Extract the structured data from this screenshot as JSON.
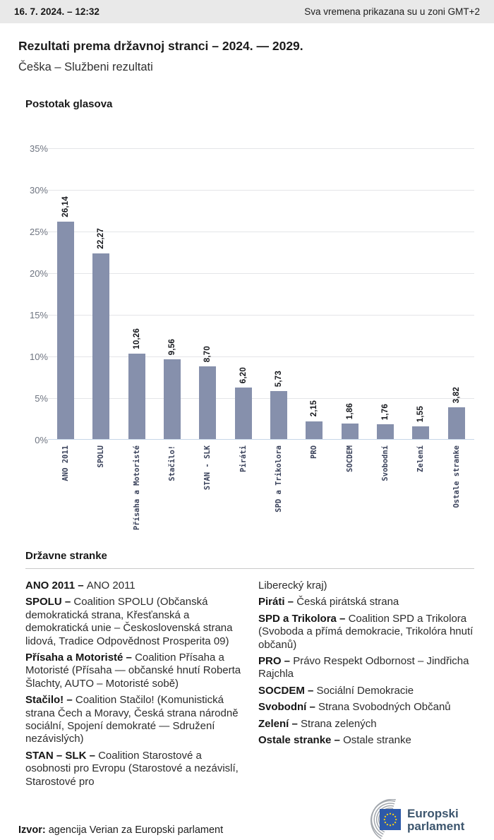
{
  "header": {
    "datetime": "16. 7. 2024. – 12:32",
    "timezone_note": "Sva vremena prikazana su u zoni GMT+2"
  },
  "title": "Rezultati prema državnoj stranci – 2024. — 2029.",
  "subtitle": "Češka – Službeni rezultati",
  "chart_data": {
    "type": "bar",
    "title": "Postotak glasova",
    "categories": [
      "ANO 2011",
      "SPOLU",
      "Přísaha a Motoristé",
      "Stačilo!",
      "STAN - SLK",
      "Piráti",
      "SPD a Trikolora",
      "PRO",
      "SOCDEM",
      "Svobodní",
      "Zelení",
      "Ostale stranke"
    ],
    "values": [
      26.14,
      22.27,
      10.26,
      9.56,
      8.7,
      6.2,
      5.73,
      2.15,
      1.86,
      1.76,
      1.55,
      3.82
    ],
    "value_labels": [
      "26,14",
      "22,27",
      "10,26",
      "9,56",
      "8,70",
      "6,20",
      "5,73",
      "2,15",
      "1,86",
      "1,76",
      "1,55",
      "3,82"
    ],
    "xlabel": "",
    "ylabel": "Postotak glasova",
    "ylim": [
      0,
      35
    ],
    "ytick_step": 5,
    "ytick_labels": [
      "35%",
      "30%",
      "25%",
      "20%",
      "15%",
      "10%",
      "5%",
      "0%"
    ],
    "grid": true,
    "legend": false,
    "bar_color": "#8690ac",
    "axis_line_color": "#c7d7e8",
    "gridline_color": "#e4e5e8"
  },
  "parties_section": {
    "heading": "Državne stranke",
    "columns": [
      [
        {
          "name": "ANO 2011 –",
          "text": "ANO 2011"
        },
        {
          "name": "SPOLU –",
          "text": "Coalition SPOLU (Občanská demokratická strana, Křesťanská a demokratická unie – Československá strana lidová, Tradice Odpovědnost Prosperita 09)"
        },
        {
          "name": "Přísaha a Motoristé –",
          "text": "Coalition Přísaha a Motoristé (Přísaha — občanské hnutí Roberta Šlachty, AUTO – Motoristé sobě)"
        },
        {
          "name": "Stačilo! –",
          "text": "Coalition Stačilo! (Komunistická strana Čech a Moravy, Česká strana národně sociální, Spojení demokraté — Sdružení nezávislých)"
        },
        {
          "name": "STAN – SLK –",
          "text": "Coalition Starostové a osobnosti pro Evropu (Starostové a nezávislí, Starostové pro"
        }
      ],
      [
        {
          "name": "",
          "text": "Liberecký kraj)"
        },
        {
          "name": "Piráti –",
          "text": "Česká pirátská strana"
        },
        {
          "name": "SPD a Trikolora –",
          "text": "Coalition SPD a Trikolora (Svoboda a přímá demokracie, Trikolóra hnutí občanů)"
        },
        {
          "name": "PRO –",
          "text": "Právo Respekt Odbornost – Jindřicha Rajchla"
        },
        {
          "name": "SOCDEM –",
          "text": "Sociální Demokracie"
        },
        {
          "name": "Svobodní –",
          "text": "Strana Svobodných Občanů"
        },
        {
          "name": "Zelení –",
          "text": "Strana zelených"
        },
        {
          "name": "Ostale stranke –",
          "text": "Ostale stranke"
        }
      ]
    ]
  },
  "footer": {
    "source_label": "Izvor:",
    "source_text": " agencija Verian za Europski parlament",
    "logo_line1": "Europski",
    "logo_line2": "parlament",
    "logo_colors": {
      "flag_blue": "#2d59a9",
      "star_yellow": "#f7d117",
      "arc_gray": "#a2a7ad",
      "text": "#3d566e"
    }
  }
}
